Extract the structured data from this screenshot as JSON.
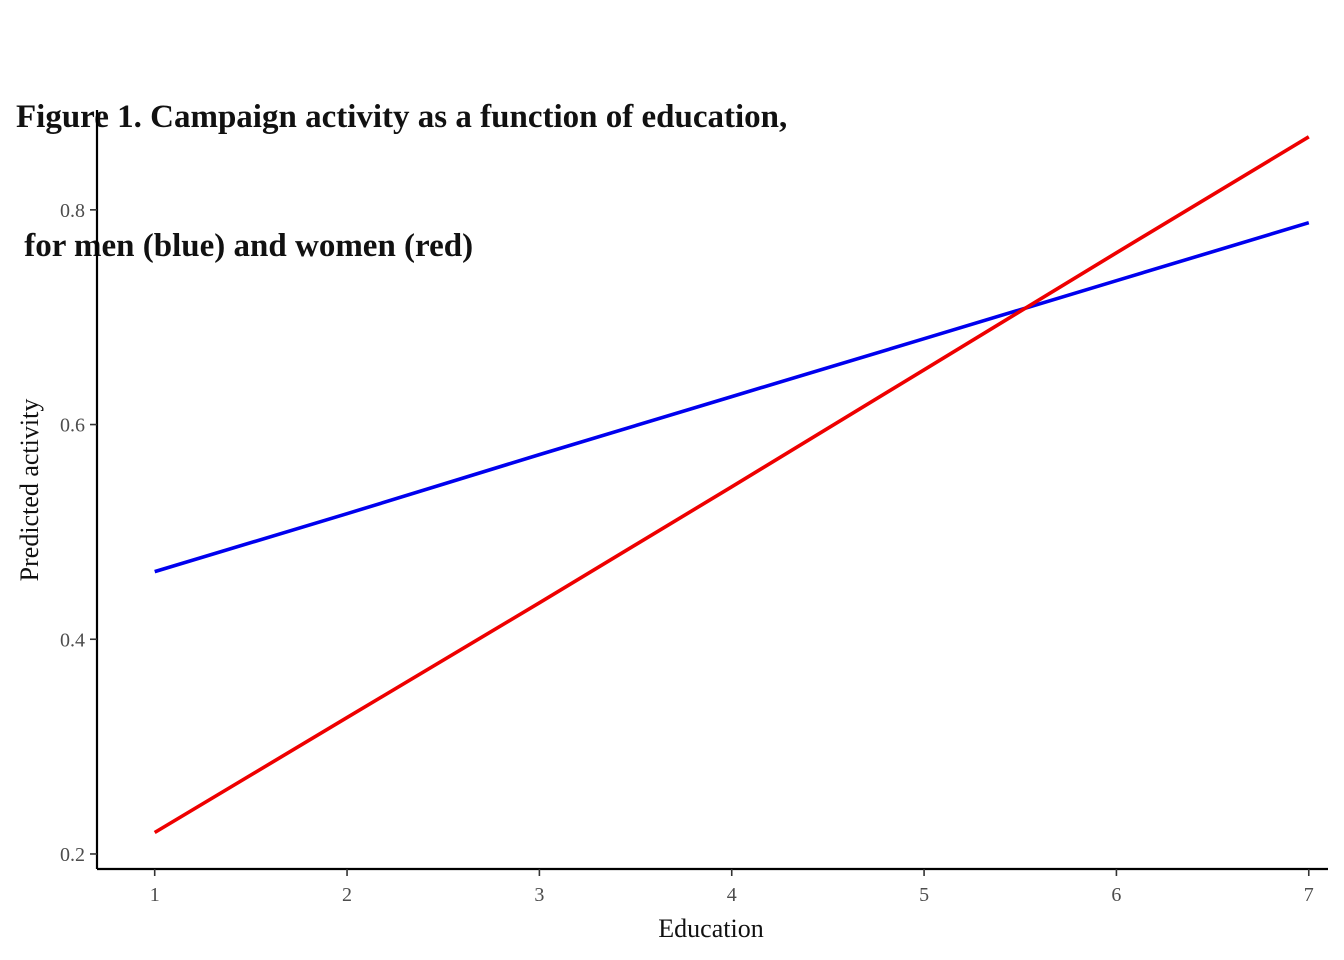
{
  "chart_data": {
    "type": "line",
    "title_line1": "Figure 1. Campaign activity as a function of education,",
    "title_line2": " for men (blue) and women (red)",
    "xlabel": "Education",
    "ylabel": "Predicted activity",
    "xlim": [
      0.7,
      7.1
    ],
    "ylim": [
      0.186,
      0.893
    ],
    "x_ticks": [
      1,
      2,
      3,
      4,
      5,
      6,
      7
    ],
    "y_ticks": [
      0.2,
      0.4,
      0.6,
      0.8
    ],
    "grid": false,
    "legend": "none",
    "series": [
      {
        "color": "#0000ee",
        "x": [
          1,
          2,
          3,
          4,
          5,
          6,
          7
        ],
        "y": [
          0.463,
          0.517,
          0.572,
          0.626,
          0.68,
          0.734,
          0.788
        ]
      },
      {
        "color": "#ee0000",
        "x": [
          1,
          2,
          3,
          4,
          5,
          6,
          7
        ],
        "y": [
          0.22,
          0.327,
          0.434,
          0.542,
          0.651,
          0.76,
          0.868
        ]
      }
    ]
  }
}
